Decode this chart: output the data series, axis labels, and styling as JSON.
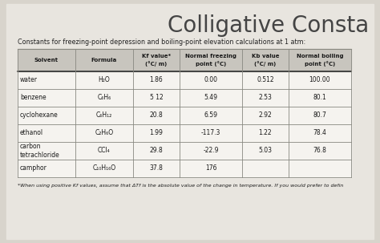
{
  "title": "Colligative Consta",
  "subtitle": "Constants for freezing-point depression and boiling-point elevation calculations at 1 atm:",
  "footnote": "*When using positive Kf values, assume that ΔTf is the absolute value of the change in temperature. If you would prefer to defin",
  "col_headers_line1": [
    "Solvent",
    "Formula",
    "Kf value*",
    "Normal freezing",
    "Kb value",
    "Normal boiling"
  ],
  "col_headers_line2": [
    "",
    "",
    "(°C/ m)",
    "point (°C)",
    "(°C/ m)",
    "point (°C)"
  ],
  "rows": [
    [
      "water",
      "H₂O",
      "1.86",
      "0.00",
      "0.512",
      "100.00"
    ],
    [
      "benzene",
      "C₆H₆",
      "5 12",
      "5.49",
      "2.53",
      "80.1"
    ],
    [
      "cyclohexane",
      "C₆H₁₂",
      "20.8",
      "6.59",
      "2.92",
      "80.7"
    ],
    [
      "ethanol",
      "C₂H₆O",
      "1.99",
      "-117.3",
      "1.22",
      "78.4"
    ],
    [
      "carbon\ntetrachloride",
      "CCl₄",
      "29.8",
      "-22.9",
      "5.03",
      "76.8"
    ],
    [
      "camphor",
      "C₁₀H₁₆O",
      "37.8",
      "176",
      "",
      ""
    ]
  ],
  "bg_color": "#d8d4cc",
  "page_bg": "#e8e5df",
  "table_white": "#f5f3ef",
  "header_gray": "#c8c5be",
  "border_color": "#888880",
  "title_color": "#444444",
  "text_color": "#1a1a1a",
  "subtitle_color": "#222222"
}
